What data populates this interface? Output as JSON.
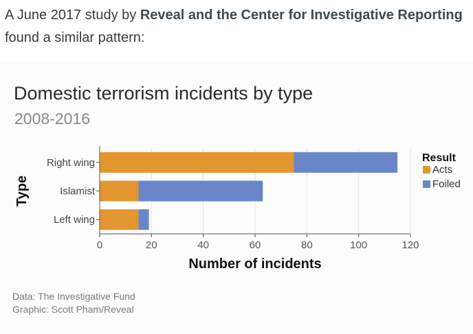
{
  "intro": {
    "prefix": "A June 2017 study by ",
    "link_text": "Reveal and the Center for Investigative Reporting",
    "suffix": " found a similar pattern:"
  },
  "colors": {
    "acts": "#e3962f",
    "foiled": "#6b86c8",
    "axis": "#555555",
    "grid": "#e5e5e5"
  },
  "chart_data": {
    "type": "bar",
    "orientation": "horizontal",
    "stacked": true,
    "title": "Domestic terrorism incidents by type",
    "subtitle": "2008-2016",
    "xlabel": "Number of incidents",
    "ylabel": "Type",
    "categories": [
      "Right wing",
      "Islamist",
      "Left wing"
    ],
    "series": [
      {
        "name": "Acts",
        "values": [
          75,
          15,
          15
        ]
      },
      {
        "name": "Foiled",
        "values": [
          40,
          48,
          4
        ]
      }
    ],
    "xlim": [
      0,
      120
    ],
    "xticks": [
      0,
      20,
      40,
      60,
      80,
      100,
      120
    ],
    "legend_title": "Result",
    "legend_position": "right",
    "grid": true
  },
  "credits": {
    "data": "Data: The Investigative Fund",
    "graphic": "Graphic: Scott Pham/Reveal"
  }
}
